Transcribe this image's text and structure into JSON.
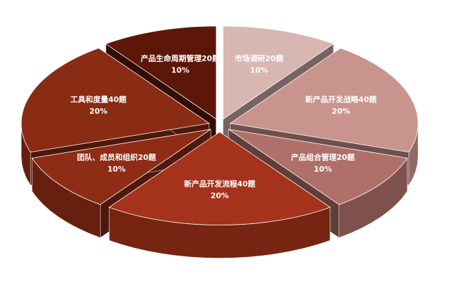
{
  "chart_data": {
    "type": "pie3d",
    "categories": [
      "市场调研20题",
      "新产品开发战略40题",
      "产品组合管理20题",
      "新产品开发流程40题",
      "团队、成员和组织20题",
      "工具和度量40题",
      "产品生命周期管理20题"
    ],
    "values": [
      10,
      20,
      10,
      20,
      10,
      20,
      10
    ],
    "value_labels": [
      "10%",
      "20%",
      "10%",
      "20%",
      "10%",
      "20%",
      "10%"
    ],
    "colors": [
      "#d8b6b2",
      "#c8948d",
      "#b0706a",
      "#a5321b",
      "#8f2c16",
      "#8a2b14",
      "#5c1709"
    ]
  }
}
